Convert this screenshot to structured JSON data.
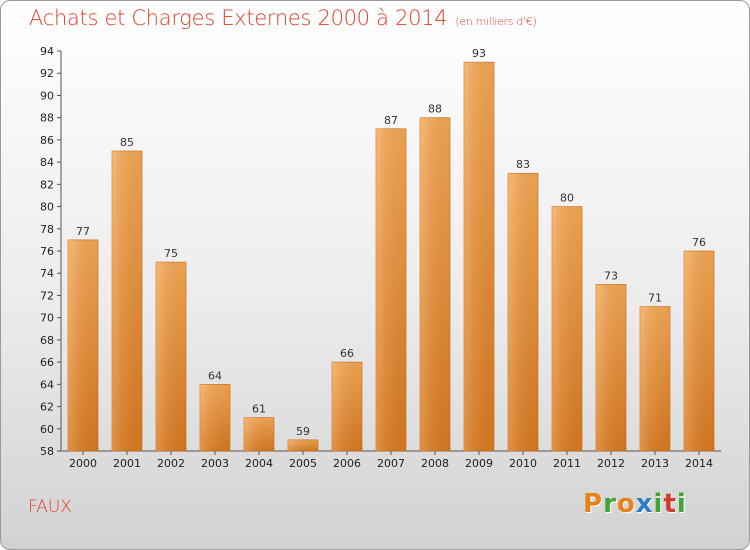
{
  "header": {
    "title": "Achats et Charges Externes 2000 à 2014",
    "subtitle": "(en milliers d'€)"
  },
  "place": "FAUX",
  "brand": {
    "letters": [
      "P",
      "r",
      "o",
      "x",
      "i",
      "t",
      "i"
    ],
    "colors": [
      "#e8811a",
      "#3fa535",
      "#e8811a",
      "#2d7fc1",
      "#3fa535",
      "#d23a2a",
      "#3fa535"
    ]
  },
  "chart_data": {
    "type": "bar",
    "categories": [
      "2000",
      "2001",
      "2002",
      "2003",
      "2004",
      "2005",
      "2006",
      "2007",
      "2008",
      "2009",
      "2010",
      "2011",
      "2012",
      "2013",
      "2014"
    ],
    "values": [
      77,
      85,
      75,
      64,
      61,
      59,
      66,
      87,
      88,
      93,
      83,
      80,
      73,
      71,
      76
    ],
    "title": "Achats et Charges Externes 2000 à 2014",
    "ylim": [
      58,
      94
    ],
    "yticks": [
      58,
      60,
      62,
      64,
      66,
      68,
      70,
      72,
      74,
      76,
      78,
      80,
      82,
      84,
      86,
      88,
      90,
      92,
      94
    ],
    "bar_color": "#f0952f",
    "grid": false,
    "legend": "none"
  }
}
